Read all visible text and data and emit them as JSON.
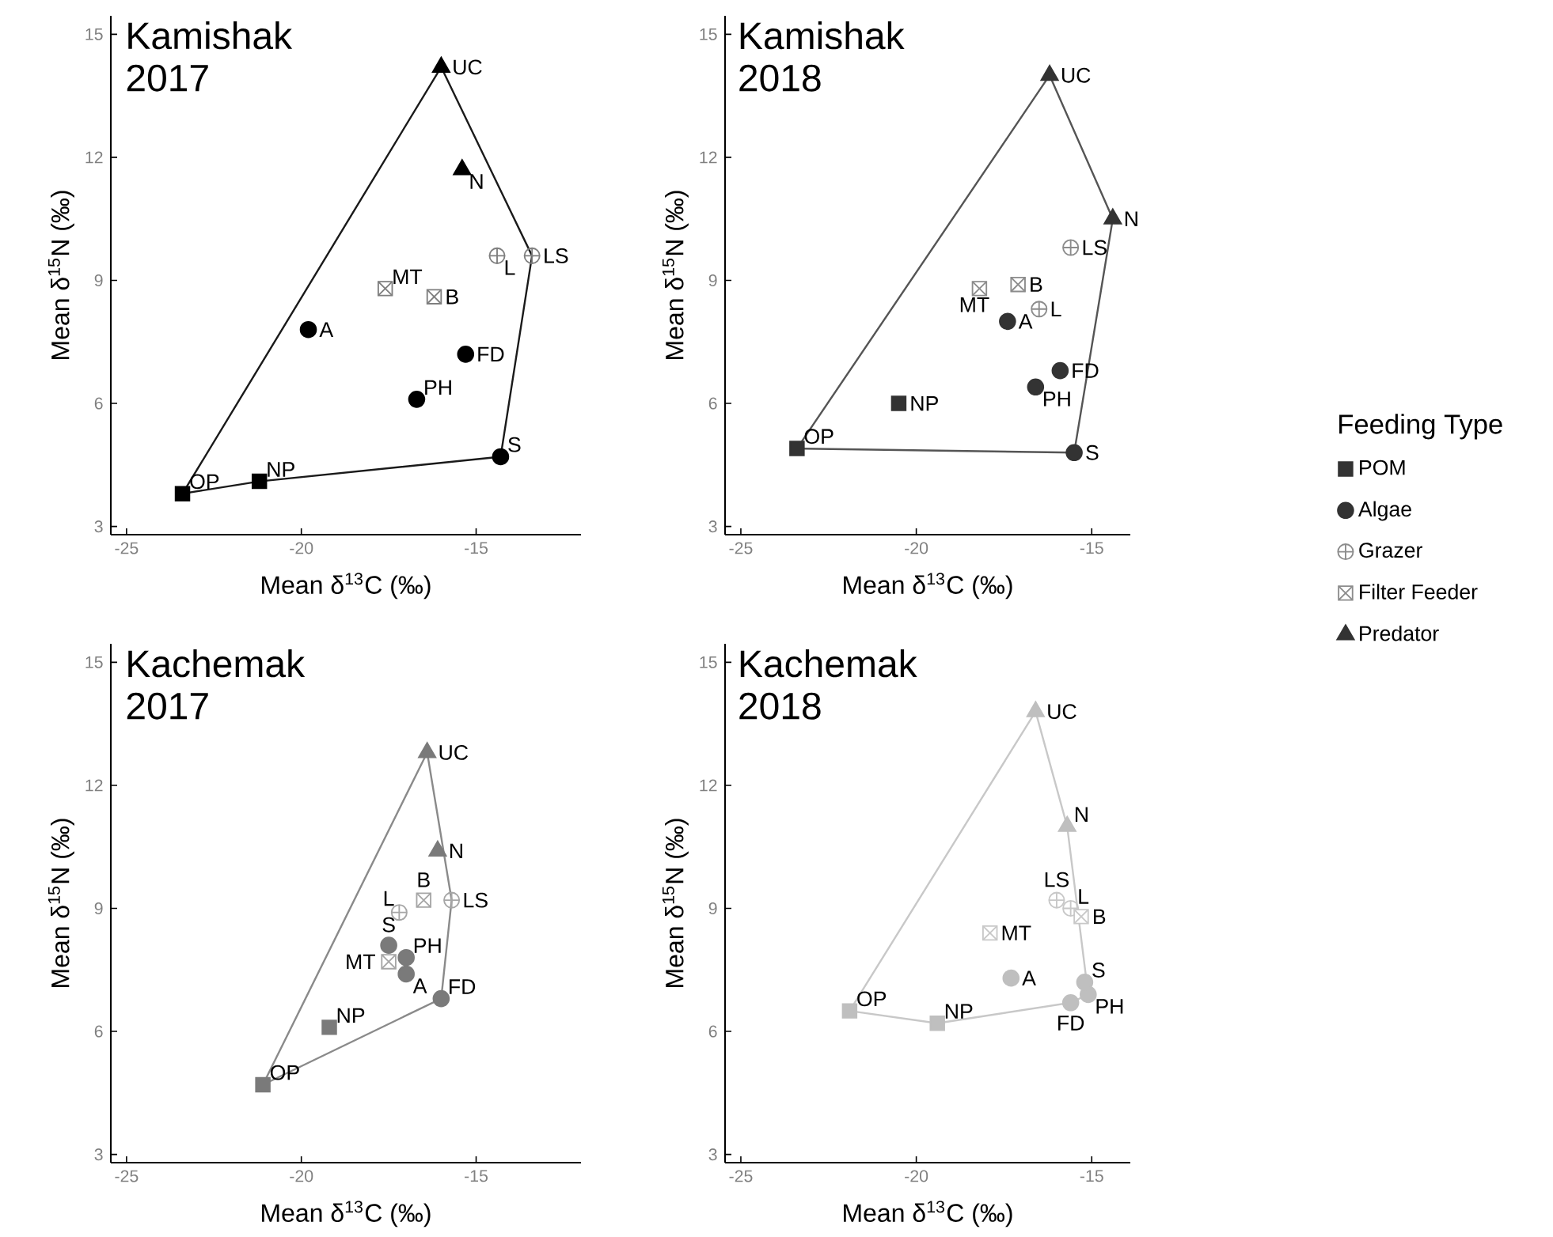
{
  "chart_data": [
    {
      "type": "scatter",
      "title": "Kamishak 2017",
      "xlabel": "Mean δ$^{13}$C (‰)",
      "ylabel": "Mean δ$^{15}$N (‰)",
      "xlim": [
        -25.45,
        -12
      ],
      "ylim": [
        2.8,
        15.45
      ],
      "xticks": [
        -25,
        -20,
        -15
      ],
      "yticks": [
        3,
        6,
        9,
        12,
        15
      ],
      "series": [
        {
          "color": "#000000",
          "marker": "square",
          "x": [
            -23.4,
            -21.2
          ],
          "values": [
            3.8,
            4.1
          ]
        },
        {
          "color": "#000000",
          "marker": "circle",
          "x": [
            -19.8,
            -15.3,
            -16.7,
            -14.3
          ],
          "values": [
            7.8,
            7.2,
            6.1,
            4.7
          ]
        },
        {
          "color": "#7f7f7f",
          "marker": "cross",
          "x": [
            -14.4,
            -13.4
          ],
          "values": [
            9.6,
            9.6
          ]
        },
        {
          "color": "#7f7f7f",
          "marker": "square",
          "x": [
            -17.6,
            -16.2
          ],
          "values": [
            8.8,
            8.6
          ]
        },
        {
          "color": "#000000",
          "marker": "triangle",
          "x": [
            -16.0,
            -15.4
          ],
          "values": [
            14.2,
            11.7
          ]
        },
        {
          "type": "line",
          "color": "#1a1a1a",
          "marker": "none",
          "x": [
            -23.4,
            -16.0,
            -13.4
          ],
          "values": [
            3.8,
            14.2,
            9.6
          ]
        },
        {
          "type": "line",
          "color": "#1a1a1a",
          "marker": "none",
          "x": [
            -23.4,
            -21.2,
            -14.3,
            -13.4
          ],
          "values": [
            3.8,
            4.1,
            4.7,
            9.6
          ]
        }
      ],
      "annotations": [
        {
          "text": "OP",
          "x": -23.4,
          "y": 3.8
        },
        {
          "text": "NP",
          "x": -21.2,
          "y": 4.1
        },
        {
          "text": "A",
          "x": -19.8,
          "y": 7.8
        },
        {
          "text": "FD",
          "x": -15.3,
          "y": 7.2
        },
        {
          "text": "PH",
          "x": -16.7,
          "y": 6.1
        },
        {
          "text": "S",
          "x": -14.3,
          "y": 4.7
        },
        {
          "text": "L",
          "x": -14.4,
          "y": 9.6
        },
        {
          "text": "LS",
          "x": -13.4,
          "y": 9.6
        },
        {
          "text": "MT",
          "x": -17.6,
          "y": 8.8
        },
        {
          "text": "B",
          "x": -16.2,
          "y": 8.6
        },
        {
          "text": "UC",
          "x": -16.0,
          "y": 14.2
        },
        {
          "text": "N",
          "x": -15.4,
          "y": 11.7
        }
      ]
    },
    {
      "type": "scatter",
      "title": "Kamishak 2018",
      "xlabel": "Mean δ$^{13}$C (‰)",
      "ylabel": "Mean δ$^{15}$N (‰)",
      "xlim": [
        -25.45,
        -13.9
      ],
      "ylim": [
        2.8,
        15.45
      ],
      "xticks": [
        -25,
        -20,
        -15
      ],
      "yticks": [
        3,
        6,
        9,
        12,
        15
      ],
      "legend": "right",
      "legend_title": "Feeding Type",
      "series": [
        {
          "name": "POM",
          "color": "#333333",
          "marker": "square",
          "x": [
            -23.4,
            -20.5
          ],
          "values": [
            4.9,
            6.0
          ]
        },
        {
          "name": "Algae",
          "color": "#333333",
          "marker": "circle",
          "x": [
            -17.4,
            -15.9,
            -16.6,
            -15.5
          ],
          "values": [
            8.0,
            6.8,
            6.4,
            4.8
          ]
        },
        {
          "name": "Grazer",
          "color": "#8c8c8c",
          "marker": "cross",
          "x": [
            -16.5,
            -15.6
          ],
          "values": [
            8.3,
            9.8
          ]
        },
        {
          "name": "Filter Feeder",
          "color": "#8c8c8c",
          "marker": "square",
          "x": [
            -18.2,
            -17.1
          ],
          "values": [
            8.8,
            8.9
          ]
        },
        {
          "name": "Predator",
          "color": "#333333",
          "marker": "triangle",
          "x": [
            -16.2,
            -14.4
          ],
          "values": [
            14.0,
            10.5
          ]
        },
        {
          "type": "line",
          "color": "#555555",
          "marker": "none",
          "x": [
            -23.4,
            -16.2,
            -14.4
          ],
          "values": [
            4.9,
            14.0,
            10.5
          ]
        },
        {
          "type": "line",
          "color": "#555555",
          "marker": "none",
          "x": [
            -23.4,
            -15.5,
            -14.4
          ],
          "values": [
            4.9,
            4.8,
            10.5
          ]
        }
      ],
      "annotations": [
        {
          "text": "OP",
          "x": -23.4,
          "y": 4.9
        },
        {
          "text": "NP",
          "x": -20.5,
          "y": 6.0
        },
        {
          "text": "A",
          "x": -17.4,
          "y": 8.0
        },
        {
          "text": "FD",
          "x": -15.9,
          "y": 6.8
        },
        {
          "text": "PH",
          "x": -16.6,
          "y": 6.4
        },
        {
          "text": "S",
          "x": -15.5,
          "y": 4.8
        },
        {
          "text": "L",
          "x": -16.5,
          "y": 8.3
        },
        {
          "text": "LS",
          "x": -15.6,
          "y": 9.8
        },
        {
          "text": "MT",
          "x": -18.2,
          "y": 8.8
        },
        {
          "text": "B",
          "x": -17.1,
          "y": 8.9
        },
        {
          "text": "UC",
          "x": -16.2,
          "y": 14.0
        },
        {
          "text": "N",
          "x": -14.4,
          "y": 10.5
        }
      ]
    },
    {
      "type": "scatter",
      "title": "Kachemak 2017",
      "xlabel": "Mean δ$^{13}$C (‰)",
      "ylabel": "Mean δ$^{15}$N (‰)",
      "xlim": [
        -25.45,
        -12
      ],
      "ylim": [
        2.8,
        15.45
      ],
      "xticks": [
        -25,
        -20,
        -15
      ],
      "yticks": [
        3,
        6,
        9,
        12,
        15
      ],
      "series": [
        {
          "color": "#7a7a7a",
          "marker": "square",
          "x": [
            -21.1,
            -19.2
          ],
          "values": [
            4.7,
            6.1
          ]
        },
        {
          "color": "#7a7a7a",
          "marker": "circle",
          "x": [
            -17.0,
            -16.0,
            -17.0,
            -17.5
          ],
          "values": [
            7.4,
            6.8,
            7.8,
            8.1
          ]
        },
        {
          "color": "#a6a6a6",
          "marker": "cross",
          "x": [
            -17.2,
            -15.7
          ],
          "values": [
            8.9,
            9.2
          ]
        },
        {
          "color": "#a6a6a6",
          "marker": "cross",
          "x": [
            -17.5,
            -16.5
          ],
          "values": [
            7.7,
            9.2
          ]
        },
        {
          "color": "#7a7a7a",
          "marker": "triangle",
          "x": [
            -16.4,
            -16.1
          ],
          "values": [
            12.8,
            10.4
          ]
        },
        {
          "type": "line",
          "color": "#8a8a8a",
          "marker": "none",
          "x": [
            -21.1,
            -16.4,
            -15.7
          ],
          "values": [
            4.7,
            12.8,
            9.2
          ]
        },
        {
          "type": "line",
          "color": "#8a8a8a",
          "marker": "none",
          "x": [
            -21.1,
            -16.0,
            -15.7
          ],
          "values": [
            4.7,
            6.8,
            9.2
          ]
        }
      ],
      "annotations": [
        {
          "text": "OP",
          "x": -21.1,
          "y": 4.7
        },
        {
          "text": "NP",
          "x": -19.2,
          "y": 6.1
        },
        {
          "text": "A",
          "x": -17.0,
          "y": 7.4
        },
        {
          "text": "FD",
          "x": -16.0,
          "y": 6.8
        },
        {
          "text": "PH",
          "x": -17.0,
          "y": 7.8
        },
        {
          "text": "S",
          "x": -17.5,
          "y": 8.1
        },
        {
          "text": "L",
          "x": -17.2,
          "y": 8.9
        },
        {
          "text": "LS",
          "x": -15.7,
          "y": 9.2
        },
        {
          "text": "MT",
          "x": -17.5,
          "y": 7.7
        },
        {
          "text": "B",
          "x": -16.5,
          "y": 9.2
        },
        {
          "text": "UC",
          "x": -16.4,
          "y": 12.8
        },
        {
          "text": "N",
          "x": -16.1,
          "y": 10.4
        }
      ]
    },
    {
      "type": "scatter",
      "title": "Kachemak 2018",
      "xlabel": "Mean δ$^{13}$C (‰)",
      "ylabel": "Mean δ$^{15}$N (‰)",
      "xlim": [
        -25.45,
        -13.9
      ],
      "ylim": [
        2.8,
        15.45
      ],
      "xticks": [
        -25,
        -20,
        -15
      ],
      "yticks": [
        3,
        6,
        9,
        12,
        15
      ],
      "series": [
        {
          "color": "#bfbfbf",
          "marker": "square",
          "x": [
            -21.9,
            -19.4
          ],
          "values": [
            6.5,
            6.2
          ]
        },
        {
          "color": "#bfbfbf",
          "marker": "circle",
          "x": [
            -17.3,
            -15.6,
            -15.1,
            -15.2
          ],
          "values": [
            7.3,
            6.7,
            6.9,
            7.2
          ]
        },
        {
          "color": "#c8c8c8",
          "marker": "cross",
          "x": [
            -15.6,
            -16.0
          ],
          "values": [
            9.0,
            9.2
          ]
        },
        {
          "color": "#c8c8c8",
          "marker": "square",
          "x": [
            -17.9,
            -15.3
          ],
          "values": [
            8.4,
            8.8
          ]
        },
        {
          "color": "#bfbfbf",
          "marker": "triangle",
          "x": [
            -16.6,
            -15.7
          ],
          "values": [
            13.8,
            11.0
          ]
        },
        {
          "type": "line",
          "color": "#c8c8c8",
          "marker": "none",
          "x": [
            -21.9,
            -16.6,
            -15.7,
            -15.1
          ],
          "values": [
            6.5,
            13.8,
            11.0,
            6.9
          ]
        },
        {
          "type": "line",
          "color": "#c8c8c8",
          "marker": "none",
          "x": [
            -21.9,
            -19.4,
            -15.6,
            -15.1
          ],
          "values": [
            6.5,
            6.2,
            6.7,
            6.9
          ]
        }
      ],
      "annotations": [
        {
          "text": "OP",
          "x": -21.9,
          "y": 6.5
        },
        {
          "text": "NP",
          "x": -19.4,
          "y": 6.2
        },
        {
          "text": "A",
          "x": -17.3,
          "y": 7.3
        },
        {
          "text": "FD",
          "x": -15.6,
          "y": 6.7
        },
        {
          "text": "PH",
          "x": -15.1,
          "y": 6.9
        },
        {
          "text": "S",
          "x": -15.2,
          "y": 7.2
        },
        {
          "text": "L",
          "x": -15.6,
          "y": 9.0
        },
        {
          "text": "LS",
          "x": -16.0,
          "y": 9.2
        },
        {
          "text": "MT",
          "x": -17.9,
          "y": 8.4
        },
        {
          "text": "B",
          "x": -15.3,
          "y": 8.8
        },
        {
          "text": "UC",
          "x": -16.6,
          "y": 13.8
        },
        {
          "text": "N",
          "x": -15.7,
          "y": 11.0
        }
      ]
    }
  ]
}
